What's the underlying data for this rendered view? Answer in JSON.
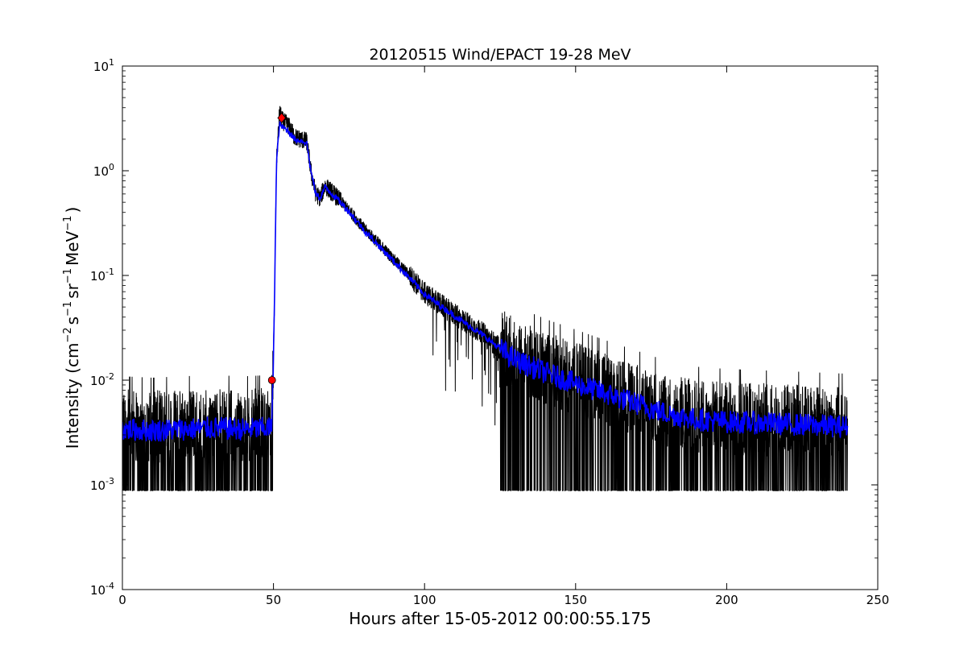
{
  "chart_data": {
    "type": "line",
    "title": "20120515 Wind/EPACT 19-28 MeV",
    "xlabel": "Hours after 15-05-2012 00:00:55.175",
    "ylabel": {
      "prefix": "Intensity (cm",
      "exp1": "−2",
      "mid1": "s",
      "exp2": "−1",
      "mid2": "sr",
      "exp3": "−1",
      "mid3": "MeV",
      "exp4": "−1",
      "suffix": ")"
    },
    "xlim": [
      0,
      250
    ],
    "ylim": [
      0.0001,
      10
    ],
    "yscale": "log",
    "grid": false,
    "xticks": [
      0,
      50,
      100,
      150,
      200,
      250
    ],
    "yticks": [
      {
        "value": 0.0001,
        "base": "10",
        "exp": "-4"
      },
      {
        "value": 0.001,
        "base": "10",
        "exp": "-3"
      },
      {
        "value": 0.01,
        "base": "10",
        "exp": "-2"
      },
      {
        "value": 0.1,
        "base": "10",
        "exp": "-1"
      },
      {
        "value": 1,
        "base": "10",
        "exp": "0"
      },
      {
        "value": 10,
        "base": "10",
        "exp": "1"
      }
    ],
    "series": [
      {
        "color": "#000000",
        "style": "raw data, noisy",
        "x": [
          0,
          10,
          20,
          30,
          40,
          49.5,
          50.3,
          51,
          52,
          53,
          55,
          57,
          59,
          61,
          62.5,
          64,
          65.5,
          67,
          70,
          75,
          80,
          85,
          90,
          95,
          100,
          110,
          120,
          125,
          130,
          140,
          150,
          160,
          170,
          180,
          190,
          200,
          210,
          220,
          230,
          240
        ],
        "y": [
          0.0034,
          0.0033,
          0.0034,
          0.0035,
          0.0034,
          0.0035,
          0.05,
          1.2,
          3.6,
          3.0,
          2.7,
          2.1,
          2.0,
          1.9,
          0.95,
          0.6,
          0.55,
          0.72,
          0.6,
          0.42,
          0.28,
          0.2,
          0.14,
          0.1,
          0.068,
          0.042,
          0.027,
          0.02,
          0.016,
          0.012,
          0.0095,
          0.0075,
          0.006,
          0.0048,
          0.0042,
          0.004,
          0.0039,
          0.0038,
          0.0037,
          0.0036
        ],
        "noise_floor": 0.00088,
        "noise_ceiling_quiet": 0.006
      },
      {
        "color": "#0000ff",
        "style": "smoothed",
        "x": [
          0,
          10,
          20,
          30,
          40,
          49.5,
          50.3,
          51,
          52,
          53,
          55,
          57,
          59,
          61,
          62.5,
          64,
          65.5,
          67,
          70,
          75,
          80,
          85,
          90,
          95,
          100,
          110,
          120,
          125,
          130,
          140,
          150,
          160,
          170,
          180,
          190,
          200,
          210,
          220,
          230,
          240
        ],
        "y": [
          0.0034,
          0.0033,
          0.0034,
          0.0035,
          0.0034,
          0.0035,
          0.05,
          1.2,
          2.8,
          2.6,
          2.4,
          2.0,
          1.95,
          1.85,
          0.95,
          0.6,
          0.55,
          0.7,
          0.58,
          0.41,
          0.27,
          0.19,
          0.135,
          0.095,
          0.066,
          0.041,
          0.026,
          0.02,
          0.0155,
          0.0118,
          0.0093,
          0.0074,
          0.006,
          0.0048,
          0.0042,
          0.004,
          0.0039,
          0.0038,
          0.0037,
          0.0036
        ]
      }
    ],
    "markers": [
      {
        "shape": "circle",
        "color": "#ff0000",
        "x": 49.5,
        "y": 0.01
      },
      {
        "shape": "diamond",
        "color": "#ff0000",
        "x": 52.7,
        "y": 3.2
      }
    ]
  }
}
